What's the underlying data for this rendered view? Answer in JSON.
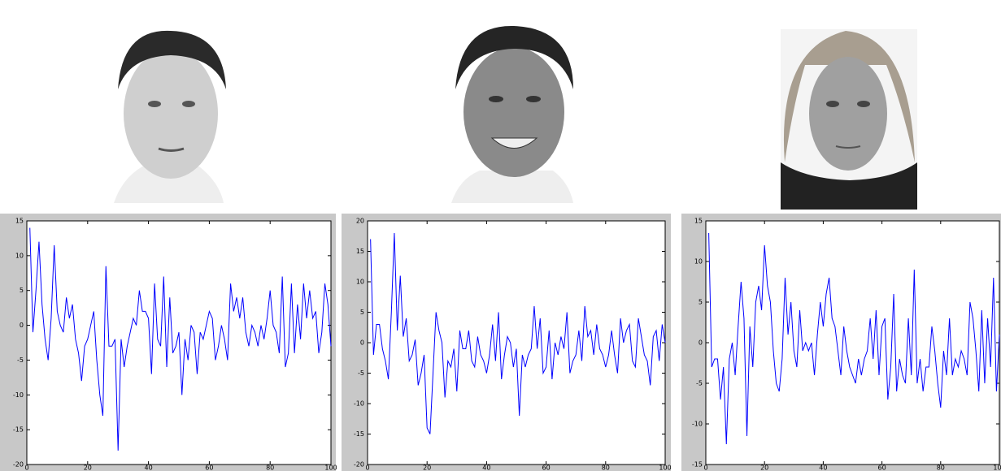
{
  "chart_data": [
    {
      "type": "line",
      "color": "#0000ff",
      "x": [
        1,
        2,
        3,
        4,
        5,
        6,
        7,
        8,
        9,
        10,
        11,
        12,
        13,
        14,
        15,
        16,
        17,
        18,
        19,
        20,
        21,
        22,
        23,
        24,
        25,
        26,
        27,
        28,
        29,
        30,
        31,
        32,
        33,
        34,
        35,
        36,
        37,
        38,
        39,
        40,
        41,
        42,
        43,
        44,
        45,
        46,
        47,
        48,
        49,
        50,
        51,
        52,
        53,
        54,
        55,
        56,
        57,
        58,
        59,
        60,
        61,
        62,
        63,
        64,
        65,
        66,
        67,
        68,
        69,
        70,
        71,
        72,
        73,
        74,
        75,
        76,
        77,
        78,
        79,
        80,
        81,
        82,
        83,
        84,
        85,
        86,
        87,
        88,
        89,
        90,
        91,
        92,
        93,
        94,
        95,
        96,
        97,
        98,
        99,
        100
      ],
      "values": [
        14,
        -1,
        5,
        12,
        3,
        -2,
        -5,
        1,
        11.5,
        2,
        0,
        -1,
        4,
        1,
        3,
        -2,
        -4,
        -8,
        -3,
        -2,
        0,
        2,
        -5,
        -10,
        -13,
        8.5,
        -3,
        -3,
        -2,
        -18,
        -2,
        -6,
        -3,
        -1,
        1,
        0,
        5,
        2,
        2,
        1,
        -7,
        6,
        -2,
        -3,
        7,
        -6,
        4,
        -4,
        -3,
        -1,
        -10,
        -2,
        -5,
        0,
        -1,
        -7,
        -1,
        -2,
        0,
        2,
        1,
        -5,
        -3,
        0,
        -2,
        -5,
        6,
        2,
        4,
        1,
        4,
        -1,
        -3,
        0,
        -1,
        -3,
        0,
        -2,
        1,
        5,
        0,
        -1,
        -4,
        7,
        -6,
        -4,
        6,
        -4,
        3,
        -2,
        6,
        1,
        5,
        1,
        2,
        -4,
        -1,
        6,
        3,
        -3
      ],
      "xlim": [
        0,
        100
      ],
      "xticks": [
        0,
        20,
        40,
        60,
        80,
        100
      ],
      "ylim": [
        -20,
        15
      ],
      "yticks": [
        -20,
        -15,
        -10,
        -5,
        0,
        5,
        10,
        15
      ]
    },
    {
      "type": "line",
      "color": "#0000ff",
      "x": [
        1,
        2,
        3,
        4,
        5,
        6,
        7,
        8,
        9,
        10,
        11,
        12,
        13,
        14,
        15,
        16,
        17,
        18,
        19,
        20,
        21,
        22,
        23,
        24,
        25,
        26,
        27,
        28,
        29,
        30,
        31,
        32,
        33,
        34,
        35,
        36,
        37,
        38,
        39,
        40,
        41,
        42,
        43,
        44,
        45,
        46,
        47,
        48,
        49,
        50,
        51,
        52,
        53,
        54,
        55,
        56,
        57,
        58,
        59,
        60,
        61,
        62,
        63,
        64,
        65,
        66,
        67,
        68,
        69,
        70,
        71,
        72,
        73,
        74,
        75,
        76,
        77,
        78,
        79,
        80,
        81,
        82,
        83,
        84,
        85,
        86,
        87,
        88,
        89,
        90,
        91,
        92,
        93,
        94,
        95,
        96,
        97,
        98,
        99,
        100
      ],
      "values": [
        17,
        -2,
        3,
        3,
        -1,
        -3,
        -6,
        5,
        18,
        2,
        11,
        1,
        4,
        -3,
        -2,
        0.5,
        -7,
        -5,
        -2,
        -14,
        -15,
        -5,
        5,
        2,
        0,
        -9,
        -3,
        -4,
        -1,
        -8,
        2,
        -1,
        -1,
        2,
        -3,
        -4,
        1,
        -2,
        -3,
        -5,
        -2,
        3,
        -3,
        5,
        -6,
        -2,
        1,
        0,
        -4,
        -1,
        -12,
        -2,
        -4,
        -2,
        -1,
        6,
        -1,
        4,
        -5,
        -4,
        2,
        -6,
        0,
        -2,
        1,
        -1,
        5,
        -5,
        -3,
        -2,
        2,
        -3,
        6,
        1,
        2,
        -2,
        3,
        -1,
        -2,
        -4,
        -2,
        2,
        -2,
        -5,
        4,
        0,
        2,
        3,
        -3,
        -4,
        4,
        1,
        -2,
        -3,
        -7,
        1,
        2,
        -3,
        3,
        0
      ],
      "xlim": [
        0,
        100
      ],
      "xticks": [
        0,
        20,
        40,
        60,
        80,
        100
      ],
      "ylim": [
        -20,
        20
      ],
      "yticks": [
        -20,
        -15,
        -10,
        -5,
        0,
        5,
        10,
        15,
        20
      ]
    },
    {
      "type": "line",
      "color": "#0000ff",
      "x": [
        1,
        2,
        3,
        4,
        5,
        6,
        7,
        8,
        9,
        10,
        11,
        12,
        13,
        14,
        15,
        16,
        17,
        18,
        19,
        20,
        21,
        22,
        23,
        24,
        25,
        26,
        27,
        28,
        29,
        30,
        31,
        32,
        33,
        34,
        35,
        36,
        37,
        38,
        39,
        40,
        41,
        42,
        43,
        44,
        45,
        46,
        47,
        48,
        49,
        50,
        51,
        52,
        53,
        54,
        55,
        56,
        57,
        58,
        59,
        60,
        61,
        62,
        63,
        64,
        65,
        66,
        67,
        68,
        69,
        70,
        71,
        72,
        73,
        74,
        75,
        76,
        77,
        78,
        79,
        80,
        81,
        82,
        83,
        84,
        85,
        86,
        87,
        88,
        89,
        90,
        91,
        92,
        93,
        94,
        95,
        96,
        97,
        98,
        99,
        100
      ],
      "values": [
        13.5,
        -3,
        -2,
        -2,
        -7,
        -3,
        -12.5,
        -2,
        0,
        -4,
        2,
        7.5,
        3,
        -11.5,
        2,
        -3,
        5,
        7,
        4,
        12,
        7,
        5,
        -1,
        -5,
        -6,
        -2,
        8,
        1,
        5,
        -1,
        -3,
        4,
        -1,
        0,
        -1,
        0,
        -4,
        1,
        5,
        2,
        6,
        8,
        3,
        2,
        -1,
        -4,
        2,
        -1,
        -3,
        -4,
        -5,
        -2,
        -4,
        -2,
        -1,
        3,
        -2,
        4,
        -4,
        2,
        3,
        -7,
        -3,
        6,
        -6,
        -2,
        -4,
        -5,
        3,
        -4,
        9,
        -5,
        -2,
        -6,
        -3,
        -3,
        2,
        -1,
        -5,
        -8,
        -1,
        -4,
        3,
        -4,
        -2,
        -3,
        -1,
        -2,
        -4,
        5,
        3,
        -1,
        -6,
        4,
        -5,
        3,
        -3,
        8,
        -6,
        1
      ],
      "xlim": [
        0,
        100
      ],
      "xticks": [
        0,
        20,
        40,
        60,
        80,
        100
      ],
      "ylim": [
        -15,
        15
      ],
      "yticks": [
        -15,
        -10,
        -5,
        0,
        5,
        10,
        15
      ]
    }
  ]
}
